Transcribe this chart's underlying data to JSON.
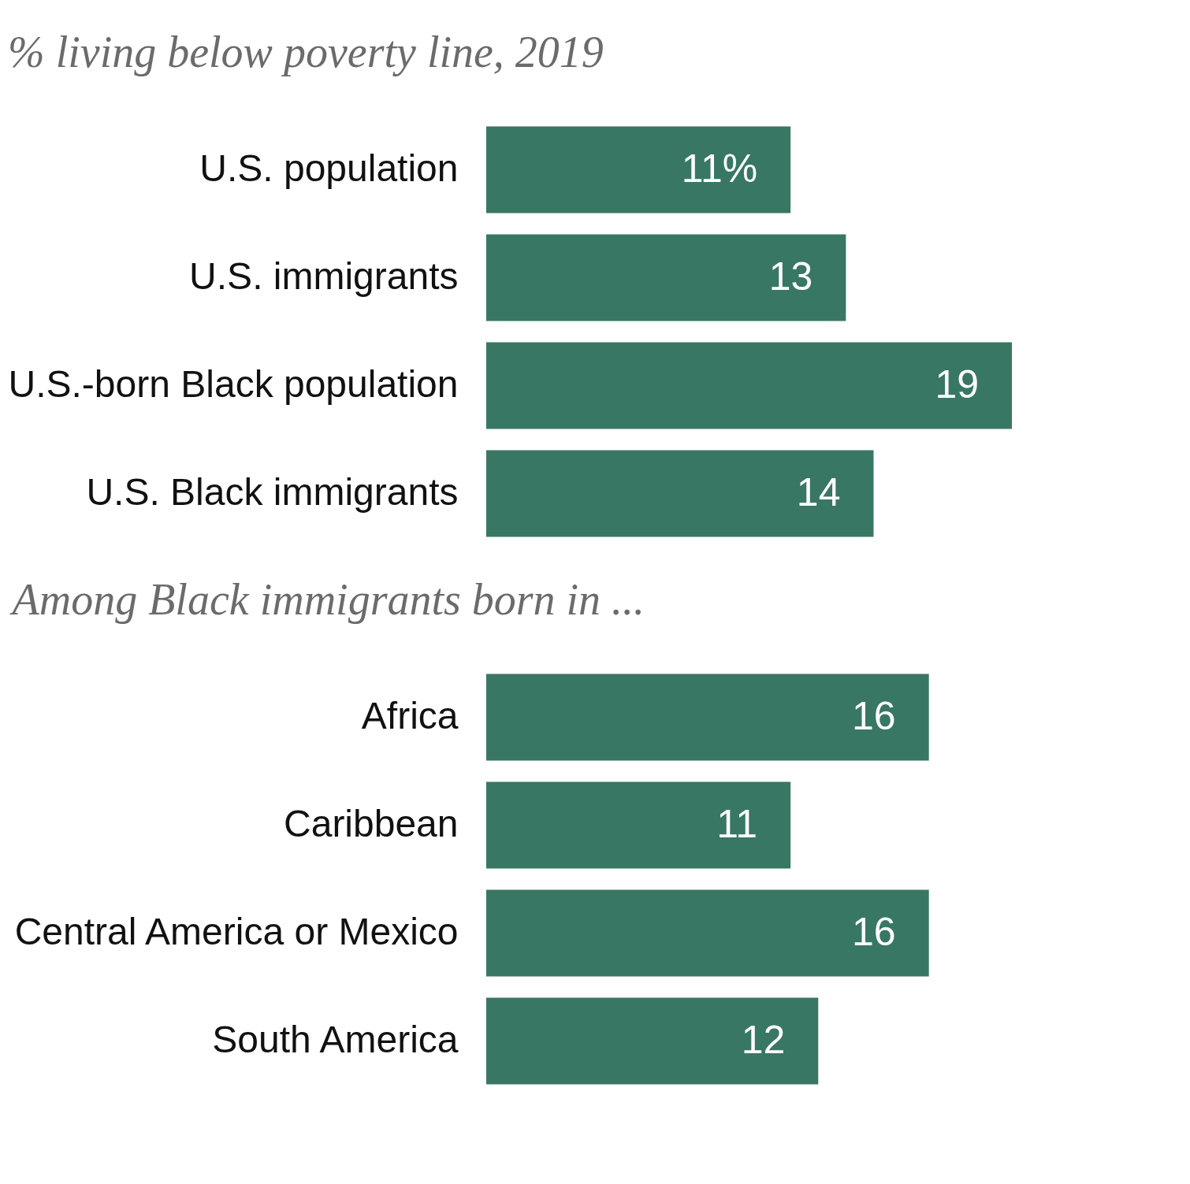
{
  "chart_data": [
    {
      "type": "bar",
      "orientation": "horizontal",
      "title": "% living below poverty line, 2019",
      "categories": [
        "U.S. population",
        "U.S. immigrants",
        "U.S.-born Black population",
        "U.S. Black immigrants"
      ],
      "values": [
        11,
        13,
        19,
        14
      ],
      "color": "#387763",
      "value_labels": [
        "11%",
        "13",
        "19",
        "14"
      ]
    },
    {
      "type": "bar",
      "orientation": "horizontal",
      "title": "Among Black immigrants born in ...",
      "categories": [
        "Africa",
        "Caribbean",
        "Central America or Mexico",
        "South America"
      ],
      "values": [
        16,
        11,
        16,
        12
      ],
      "color": "#387763",
      "data_labels": true
    }
  ]
}
